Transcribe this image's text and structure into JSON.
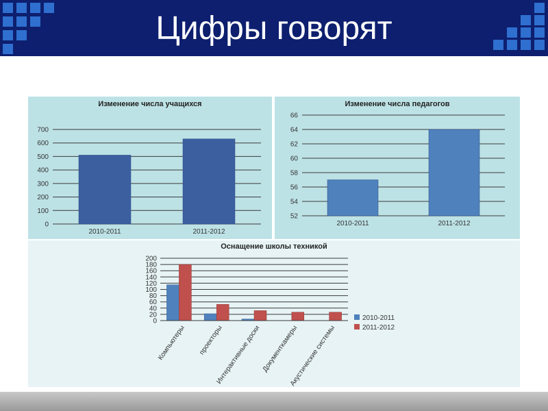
{
  "slide": {
    "title": "Цифры говорят"
  },
  "colors": {
    "header_bg": "#0d1f6e",
    "deco_squares": "#2f6fd0",
    "panel_bg": "#bde2e6",
    "panel_bg_light": "#e7f3f5",
    "series_2010_2011_single": "#3c5fa0",
    "series_blue": "#4f81bd",
    "series_red": "#c0504d"
  },
  "chart_data": [
    {
      "type": "bar",
      "title": "Изменение числа учащихся",
      "categories": [
        "2010-2011",
        "2011-2012"
      ],
      "values": [
        510,
        630
      ],
      "ylim": [
        0,
        700
      ],
      "yticks": [
        0,
        100,
        200,
        300,
        400,
        500,
        600,
        700
      ],
      "grid": true,
      "legend": "none"
    },
    {
      "type": "bar",
      "title": "Изменение числа педагогов",
      "categories": [
        "2010-2011",
        "2011-2012"
      ],
      "values": [
        57,
        64
      ],
      "ylim": [
        52,
        66
      ],
      "yticks": [
        52,
        54,
        56,
        58,
        60,
        62,
        64,
        66
      ],
      "grid": true,
      "legend": "none"
    },
    {
      "type": "bar",
      "title": "Оснащение школы техникой",
      "categories": [
        "Компьютеры",
        "проекторы",
        "Интерактивные доски",
        "Документкамеры",
        "Акустические системы"
      ],
      "series": [
        {
          "name": "2010-2011",
          "values": [
            115,
            22,
            5,
            0,
            0
          ]
        },
        {
          "name": "2011-2012",
          "values": [
            180,
            52,
            32,
            27,
            27
          ]
        }
      ],
      "ylim": [
        0,
        200
      ],
      "yticks": [
        0,
        20,
        40,
        60,
        80,
        100,
        120,
        140,
        160,
        180,
        200
      ],
      "grid": true,
      "legend": "right"
    }
  ]
}
